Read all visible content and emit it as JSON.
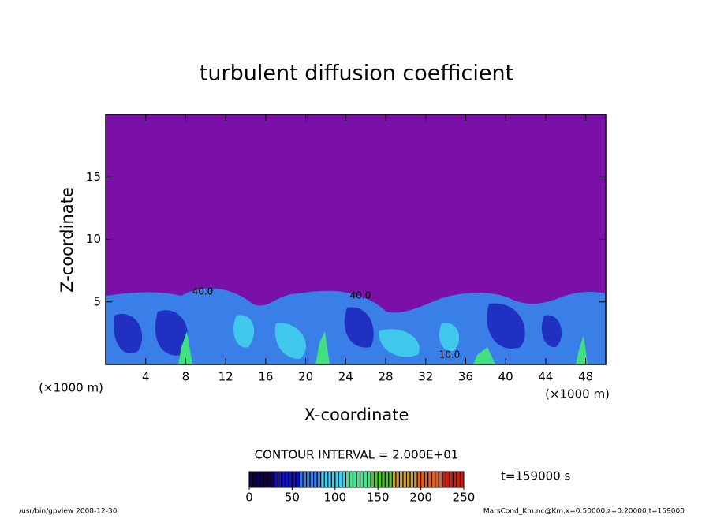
{
  "chart_data": {
    "type": "contour",
    "title": "turbulent diffusion coefficient",
    "xlabel": "X-coordinate",
    "ylabel": "Z-coordinate",
    "x_unit": "(×1000 m)",
    "y_unit": "(×1000 m)",
    "xlim": [
      0,
      50
    ],
    "xticks": [
      4,
      8,
      12,
      16,
      20,
      24,
      28,
      32,
      36,
      40,
      44,
      48
    ],
    "ylim": [
      0,
      20
    ],
    "yticks": [
      5,
      10,
      15
    ],
    "background_color": "#7a10a8",
    "contour_labels": [
      "40.0",
      "40.0",
      "10.0"
    ],
    "contour_interval": "CONTOUR INTERVAL = 2.000E+01",
    "time_label": "t=159000 s",
    "colorbar": {
      "clim": [
        0,
        250
      ],
      "ticks": [
        0,
        50,
        100,
        150,
        200,
        250
      ],
      "colors": [
        "#10004a",
        "#1010c8",
        "#3a7ee8",
        "#40d0f0",
        "#40e890",
        "#50c830",
        "#c8a040",
        "#e06020",
        "#c82010"
      ]
    },
    "footer_left": "/usr/bin/gpview   2008-12-30",
    "footer_right": "MarsCond_Km.nc@Km,x=0:50000,z=0:20000,t=159000"
  }
}
